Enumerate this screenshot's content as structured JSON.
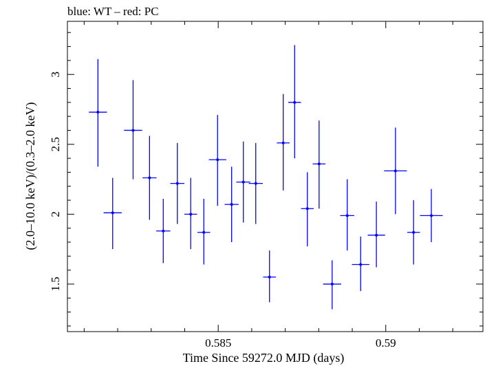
{
  "chart_data": {
    "type": "scatter",
    "title": "blue: WT – red: PC",
    "xlabel": "Time Since 59272.0 MJD (days)",
    "ylabel": "(2.0–10.0 keV)/(0.3–2.0 keV)",
    "xlim": [
      0.5805,
      0.5929
    ],
    "ylim": [
      1.16,
      3.38
    ],
    "grid": false,
    "x_ticks_major": [
      {
        "value": 0.585,
        "label": "0.585"
      },
      {
        "value": 0.59,
        "label": "0.59"
      }
    ],
    "y_ticks_major": [
      {
        "value": 1.5,
        "label": "1.5"
      },
      {
        "value": 2.0,
        "label": "2"
      },
      {
        "value": 2.5,
        "label": "2.5"
      },
      {
        "value": 3.0,
        "label": "3"
      }
    ],
    "series": [
      {
        "color": "#0000ff",
        "points": [
          {
            "x": 0.58141,
            "xerr": 0.00027,
            "y": 2.73,
            "ylo": 2.34,
            "yhi": 3.11
          },
          {
            "x": 0.58185,
            "xerr": 0.00027,
            "y": 2.01,
            "ylo": 1.75,
            "yhi": 2.26
          },
          {
            "x": 0.58246,
            "xerr": 0.00027,
            "y": 2.6,
            "ylo": 2.25,
            "yhi": 2.96
          },
          {
            "x": 0.58295,
            "xerr": 0.00021,
            "y": 2.26,
            "ylo": 1.96,
            "yhi": 2.56
          },
          {
            "x": 0.58336,
            "xerr": 0.00021,
            "y": 1.88,
            "ylo": 1.65,
            "yhi": 2.11
          },
          {
            "x": 0.58378,
            "xerr": 0.00021,
            "y": 2.22,
            "ylo": 1.93,
            "yhi": 2.51
          },
          {
            "x": 0.58418,
            "xerr": 0.00019,
            "y": 2.0,
            "ylo": 1.75,
            "yhi": 2.26
          },
          {
            "x": 0.58457,
            "xerr": 0.00019,
            "y": 1.87,
            "ylo": 1.64,
            "yhi": 2.11
          },
          {
            "x": 0.58498,
            "xerr": 0.00026,
            "y": 2.39,
            "ylo": 2.06,
            "yhi": 2.71
          },
          {
            "x": 0.5854,
            "xerr": 0.00021,
            "y": 2.07,
            "ylo": 1.8,
            "yhi": 2.34
          },
          {
            "x": 0.58575,
            "xerr": 0.00021,
            "y": 2.23,
            "ylo": 1.94,
            "yhi": 2.52
          },
          {
            "x": 0.58612,
            "xerr": 0.00021,
            "y": 2.22,
            "ylo": 1.93,
            "yhi": 2.51
          },
          {
            "x": 0.58653,
            "xerr": 0.00019,
            "y": 1.55,
            "ylo": 1.37,
            "yhi": 1.74
          },
          {
            "x": 0.58694,
            "xerr": 0.00019,
            "y": 2.51,
            "ylo": 2.17,
            "yhi": 2.86
          },
          {
            "x": 0.58728,
            "xerr": 0.00019,
            "y": 2.8,
            "ylo": 2.4,
            "yhi": 3.21
          },
          {
            "x": 0.58766,
            "xerr": 0.00019,
            "y": 2.04,
            "ylo": 1.77,
            "yhi": 2.3
          },
          {
            "x": 0.58801,
            "xerr": 0.00019,
            "y": 2.36,
            "ylo": 2.04,
            "yhi": 2.67
          },
          {
            "x": 0.5884,
            "xerr": 0.00027,
            "y": 1.5,
            "ylo": 1.32,
            "yhi": 1.67
          },
          {
            "x": 0.58885,
            "xerr": 0.00021,
            "y": 1.99,
            "ylo": 1.74,
            "yhi": 2.25
          },
          {
            "x": 0.58925,
            "xerr": 0.00026,
            "y": 1.64,
            "ylo": 1.45,
            "yhi": 1.84
          },
          {
            "x": 0.58972,
            "xerr": 0.00026,
            "y": 1.85,
            "ylo": 1.62,
            "yhi": 2.09
          },
          {
            "x": 0.59029,
            "xerr": 0.00034,
            "y": 2.31,
            "ylo": 2.0,
            "yhi": 2.62
          },
          {
            "x": 0.59083,
            "xerr": 0.00019,
            "y": 1.87,
            "ylo": 1.64,
            "yhi": 2.1
          },
          {
            "x": 0.59136,
            "xerr": 0.00034,
            "y": 1.99,
            "ylo": 1.8,
            "yhi": 2.18
          }
        ]
      }
    ]
  }
}
